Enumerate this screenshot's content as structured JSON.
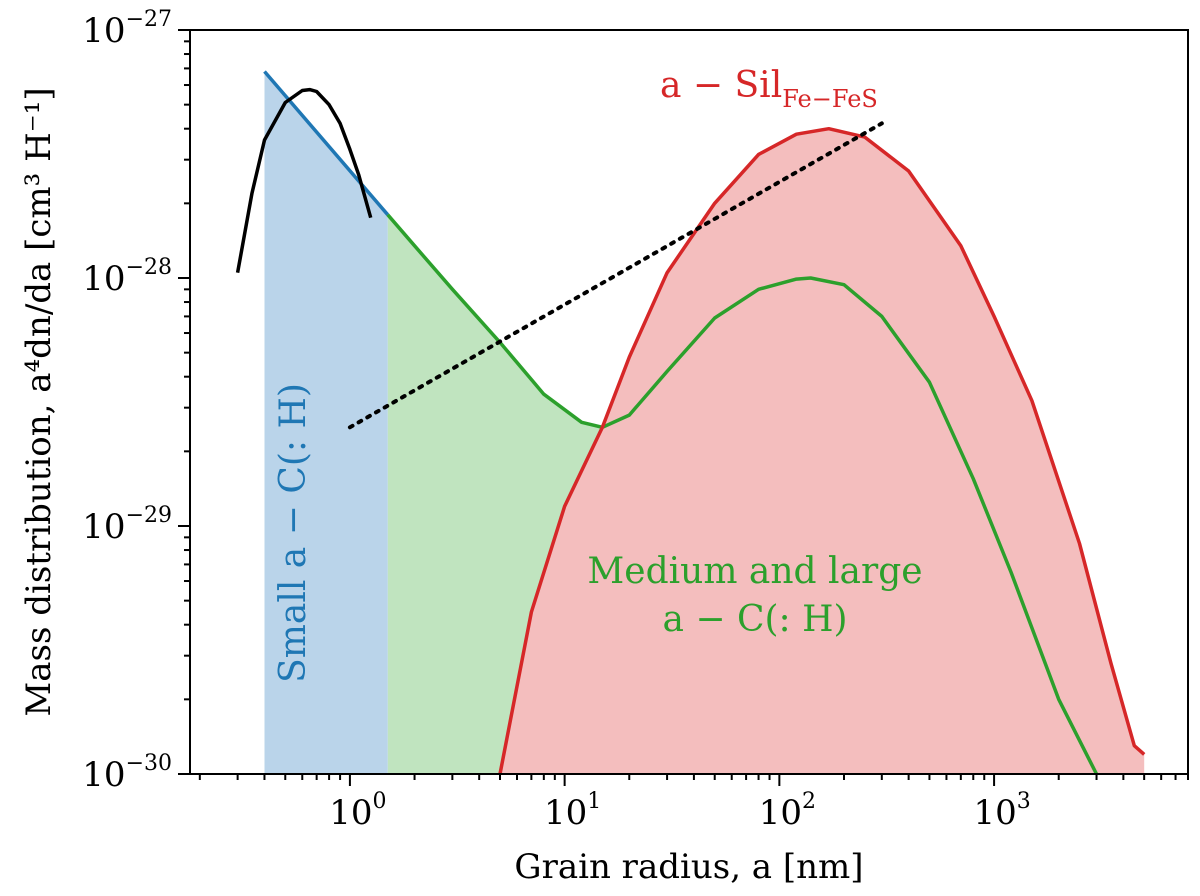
{
  "chart_data": {
    "type": "area",
    "xlabel": "Grain radius, a [nm]",
    "ylabel": "Mass distribution, a⁴dn/da [cm³ H⁻¹]",
    "xscale": "log",
    "yscale": "log",
    "xlim": [
      0.18,
      8000
    ],
    "ylim": [
      1e-30,
      1e-27
    ],
    "grid": false,
    "x_ticks": [
      {
        "value": 1,
        "base": "10",
        "exp": "0"
      },
      {
        "value": 10,
        "base": "10",
        "exp": "1"
      },
      {
        "value": 100,
        "base": "10",
        "exp": "2"
      },
      {
        "value": 1000,
        "base": "10",
        "exp": "3"
      }
    ],
    "y_ticks": [
      {
        "value": 1e-30,
        "base": "10",
        "exp": "−30"
      },
      {
        "value": 1e-29,
        "base": "10",
        "exp": "−29"
      },
      {
        "value": 1e-28,
        "base": "10",
        "exp": "−28"
      },
      {
        "value": 1e-27,
        "base": "10",
        "exp": "−27"
      }
    ],
    "series": [
      {
        "label_lines": [
          "Small a − C(: H)"
        ],
        "color": "#1f77b4",
        "fill": "#bad4ea",
        "x": [
          0.4,
          1.5
        ],
        "y": [
          6.8e-28,
          1.8e-28
        ]
      },
      {
        "label_lines": [
          "Medium and large",
          "a − C(: H)"
        ],
        "color": "#2ca02c",
        "fill": "#c0e4bf",
        "x": [
          1.5,
          2,
          3,
          5,
          8,
          12,
          15,
          20,
          30,
          50,
          80,
          120,
          140,
          200,
          300,
          500,
          800,
          1200,
          2000,
          3000
        ],
        "y": [
          1.8e-28,
          1.35e-28,
          9e-29,
          5.5e-29,
          3.4e-29,
          2.62e-29,
          2.5e-29,
          2.8e-29,
          4.2e-29,
          6.9e-29,
          9e-29,
          9.9e-29,
          1e-28,
          9.4e-29,
          7e-29,
          3.8e-29,
          1.55e-29,
          6.5e-30,
          2e-30,
          1e-30
        ]
      },
      {
        "label_lines": [
          "a − Sil",
          "Fe−FeS"
        ],
        "color": "#d62728",
        "fill": "#f4bebe",
        "x": [
          5,
          7,
          10,
          15,
          20,
          30,
          50,
          80,
          120,
          170,
          250,
          400,
          700,
          1000,
          1500,
          2500,
          3500,
          4500,
          5000
        ],
        "y": [
          1e-30,
          4.5e-30,
          1.2e-29,
          2.5e-29,
          4.8e-29,
          1.05e-28,
          2e-28,
          3.15e-28,
          3.8e-28,
          4e-28,
          3.7e-28,
          2.7e-28,
          1.35e-28,
          7e-29,
          3.2e-29,
          8.5e-30,
          2.8e-30,
          1.3e-30,
          1.2e-30
        ]
      },
      {
        "color": "#000000",
        "style": "solid",
        "x": [
          0.3,
          0.35,
          0.4,
          0.5,
          0.6,
          0.65,
          0.7,
          0.8,
          0.9,
          1.0,
          1.1,
          1.25
        ],
        "y": [
          1.05e-28,
          2.2e-28,
          3.6e-28,
          5.1e-28,
          5.7e-28,
          5.75e-28,
          5.65e-28,
          5e-28,
          4.2e-28,
          3.3e-28,
          2.6e-28,
          1.75e-28
        ]
      },
      {
        "color": "#000000",
        "style": "dotted",
        "x": [
          1,
          300
        ],
        "y": [
          2.5e-29,
          4.2e-28
        ]
      }
    ]
  }
}
